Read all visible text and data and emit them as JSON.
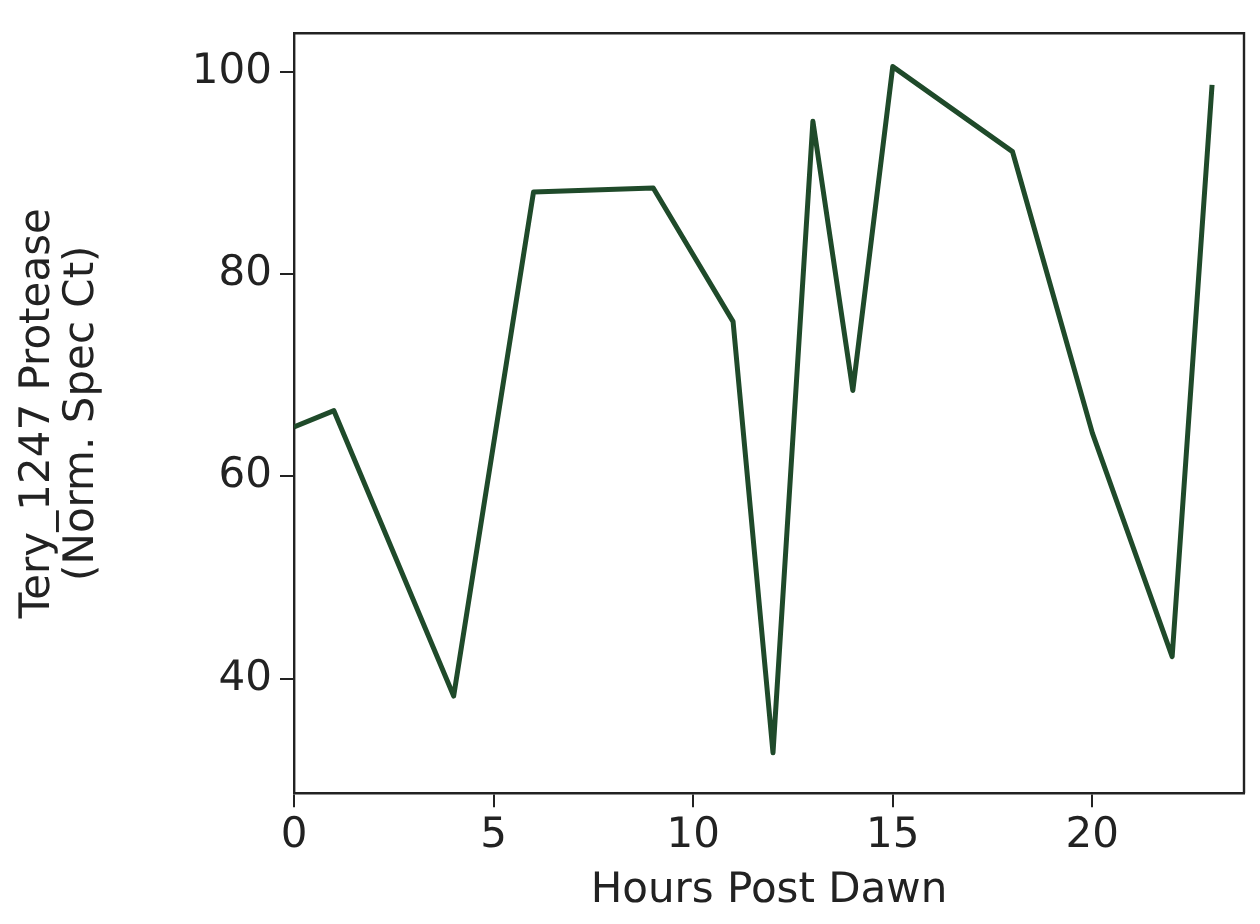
{
  "chart_data": {
    "type": "line",
    "xlabel": "Hours Post Dawn",
    "ylabel": "Tery_1247 Protease\n(Norm. Spec Ct)",
    "x": [
      0,
      1,
      4,
      6,
      9,
      11,
      12,
      13,
      14,
      15,
      18,
      20,
      22,
      23
    ],
    "values": [
      64.9,
      66.5,
      38.3,
      88.1,
      88.5,
      75.3,
      32.7,
      95.1,
      68.5,
      100.5,
      92.1,
      64.3,
      42.2,
      98.7
    ],
    "color": "#1f4a2a",
    "xlim": [
      0,
      23.8
    ],
    "xticks": [
      0,
      5,
      10,
      15,
      20
    ],
    "ylim": [
      28.7,
      103.8
    ],
    "yticks": [
      40,
      60,
      80,
      100
    ],
    "grid": false,
    "legend": false,
    "marker": "none",
    "line_style": "solid"
  }
}
